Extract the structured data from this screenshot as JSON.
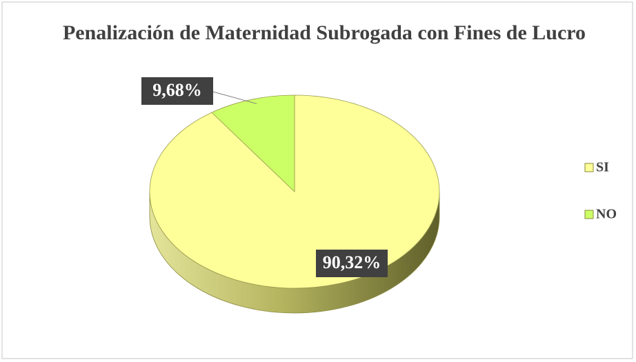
{
  "chart_data": {
    "type": "pie3d",
    "title": "Penalización de Maternidad Subrogada con Fines de Lucro",
    "categories": [
      "SI",
      "NO"
    ],
    "values": [
      90.32,
      9.68
    ],
    "value_labels": [
      "90,32%",
      "9,68%"
    ],
    "colors": [
      "#ffff99",
      "#ccff66"
    ],
    "legend": "right"
  }
}
